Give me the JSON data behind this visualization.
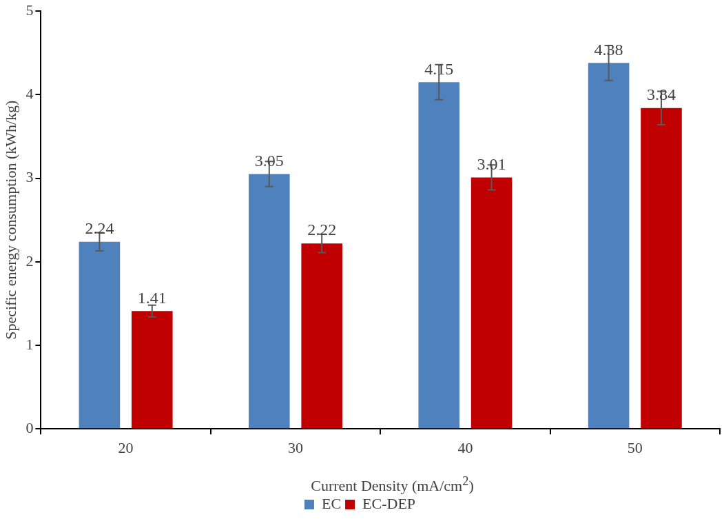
{
  "chart_data": {
    "type": "bar",
    "xlabel": "Current Density (mA/cm$^{2}$)",
    "ylabel": "Specific energy consumption (kWh/kg)",
    "categories": [
      "20",
      "30",
      "40",
      "50"
    ],
    "series": [
      {
        "name": "EC",
        "color": "#4f81bd",
        "values": [
          2.24,
          3.05,
          4.15,
          4.38
        ],
        "errors": [
          0.11,
          0.15,
          0.21,
          0.21
        ]
      },
      {
        "name": "EC-DEP",
        "color": "#c00000",
        "values": [
          1.41,
          2.22,
          3.01,
          3.84
        ],
        "errors": [
          0.07,
          0.11,
          0.15,
          0.2
        ]
      }
    ],
    "ylim": [
      0,
      5
    ],
    "yticks": [
      0,
      1,
      2,
      3,
      4,
      5
    ],
    "grid": false,
    "legend": "bottom",
    "data_labels": true
  }
}
